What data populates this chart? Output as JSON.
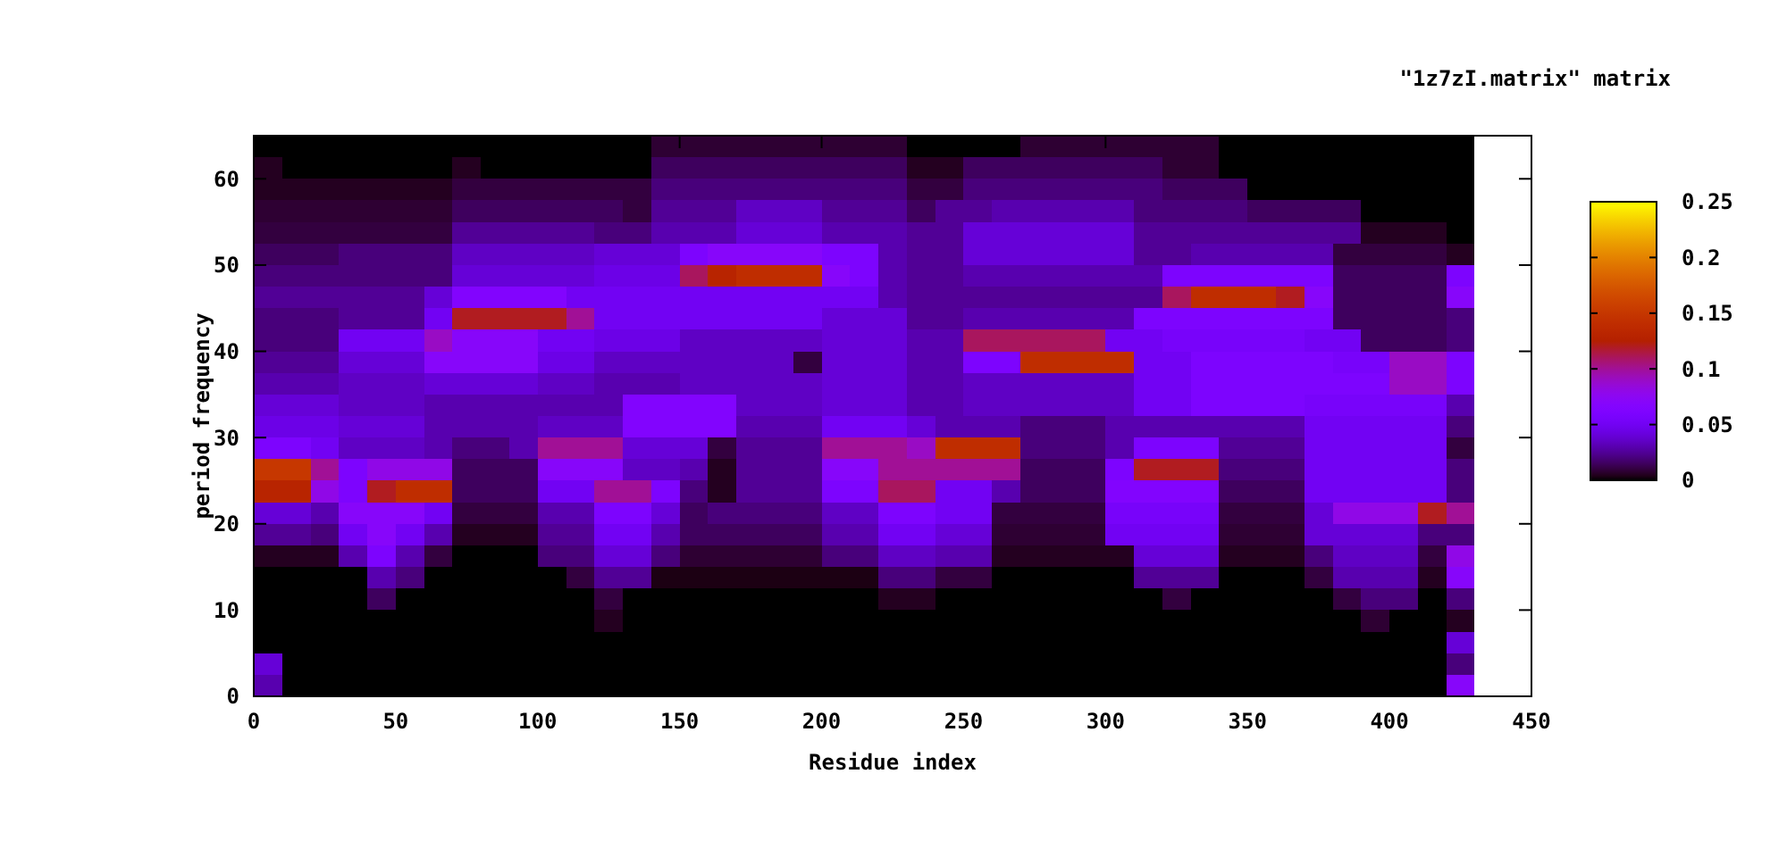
{
  "chart_data": {
    "type": "heatmap",
    "title": "\"1z7zI.matrix\" matrix",
    "xlabel": "Residue index",
    "ylabel": "period frequency",
    "x": [
      5,
      15,
      25,
      35,
      45,
      55,
      65,
      75,
      85,
      95,
      105,
      115,
      125,
      135,
      145,
      155,
      165,
      175,
      185,
      195,
      205,
      215,
      225,
      235,
      245,
      255,
      265,
      275,
      285,
      295,
      305,
      315,
      325,
      335,
      345,
      355,
      365,
      375,
      385,
      395,
      405,
      415,
      425
    ],
    "xlim": [
      0,
      450
    ],
    "xticks": [
      0,
      50,
      100,
      150,
      200,
      250,
      300,
      350,
      400,
      450
    ],
    "ylim": [
      0,
      65
    ],
    "yticks": [
      0,
      10,
      20,
      30,
      40,
      50,
      60
    ],
    "clim": [
      0,
      0.25
    ],
    "cticks": [
      0,
      0.05,
      0.1,
      0.15,
      0.2,
      0.25
    ],
    "cells": [
      [
        0,
        0,
        0,
        0,
        0,
        0,
        0,
        0,
        0,
        0,
        0,
        0,
        0,
        0,
        0.008,
        0.008,
        0.008,
        0.008,
        0.008,
        0.008,
        0.008,
        0.008,
        0.008,
        0,
        0,
        0,
        0,
        0.008,
        0.008,
        0.008,
        0.008,
        0.008,
        0.008,
        0.008,
        0,
        0,
        0,
        0,
        0,
        0,
        0,
        0,
        0
      ],
      [
        0.005,
        0,
        0,
        0,
        0,
        0,
        0,
        0.005,
        0,
        0,
        0,
        0,
        0,
        0,
        0.015,
        0.015,
        0.015,
        0.015,
        0.015,
        0.015,
        0.015,
        0.015,
        0.015,
        0.005,
        0.005,
        0.015,
        0.015,
        0.015,
        0.015,
        0.015,
        0.015,
        0.015,
        0.008,
        0.008,
        0,
        0,
        0,
        0,
        0,
        0,
        0,
        0,
        0
      ],
      [
        0.005,
        0.005,
        0.005,
        0.005,
        0.005,
        0.005,
        0.005,
        0.01,
        0.01,
        0.01,
        0.01,
        0.01,
        0.01,
        0.01,
        0.02,
        0.02,
        0.02,
        0.02,
        0.02,
        0.02,
        0.02,
        0.02,
        0.02,
        0.01,
        0.01,
        0.02,
        0.02,
        0.02,
        0.02,
        0.02,
        0.02,
        0.02,
        0.015,
        0.015,
        0.015,
        0,
        0,
        0,
        0,
        0,
        0,
        0,
        0
      ],
      [
        0.008,
        0.008,
        0.008,
        0.008,
        0.008,
        0.008,
        0.008,
        0.015,
        0.015,
        0.015,
        0.015,
        0.015,
        0.015,
        0.01,
        0.025,
        0.025,
        0.025,
        0.035,
        0.035,
        0.035,
        0.025,
        0.025,
        0.025,
        0.015,
        0.025,
        0.025,
        0.03,
        0.03,
        0.03,
        0.03,
        0.03,
        0.02,
        0.02,
        0.02,
        0.02,
        0.015,
        0.015,
        0.015,
        0.015,
        0,
        0,
        0,
        0
      ],
      [
        0.01,
        0.01,
        0.01,
        0.01,
        0.01,
        0.01,
        0.01,
        0.025,
        0.025,
        0.025,
        0.025,
        0.025,
        0.02,
        0.02,
        0.03,
        0.03,
        0.03,
        0.04,
        0.04,
        0.04,
        0.03,
        0.03,
        0.03,
        0.025,
        0.025,
        0.04,
        0.04,
        0.04,
        0.04,
        0.04,
        0.04,
        0.025,
        0.025,
        0.025,
        0.025,
        0.025,
        0.025,
        0.025,
        0.025,
        0.005,
        0.005,
        0.005,
        0
      ],
      [
        0.015,
        0.015,
        0.015,
        0.02,
        0.02,
        0.02,
        0.02,
        0.035,
        0.035,
        0.035,
        0.035,
        0.035,
        0.04,
        0.04,
        0.04,
        0.06,
        0.07,
        0.07,
        0.07,
        0.07,
        0.06,
        0.06,
        0.03,
        0.025,
        0.025,
        0.04,
        0.04,
        0.04,
        0.04,
        0.04,
        0.04,
        0.025,
        0.025,
        0.03,
        0.03,
        0.03,
        0.03,
        0.03,
        0.01,
        0.01,
        0.01,
        0.01,
        0.005
      ],
      [
        0.02,
        0.02,
        0.02,
        0.02,
        0.02,
        0.02,
        0.02,
        0.04,
        0.04,
        0.04,
        0.04,
        0.04,
        0.045,
        0.045,
        0.045,
        0.11,
        0.13,
        0.14,
        0.14,
        0.14,
        0.07,
        0.06,
        0.03,
        0.025,
        0.025,
        0.03,
        0.03,
        0.03,
        0.03,
        0.03,
        0.03,
        0.03,
        0.06,
        0.06,
        0.06,
        0.06,
        0.06,
        0.06,
        0.015,
        0.015,
        0.015,
        0.015,
        0.06
      ],
      [
        0.025,
        0.025,
        0.025,
        0.025,
        0.025,
        0.025,
        0.04,
        0.065,
        0.065,
        0.065,
        0.065,
        0.05,
        0.05,
        0.05,
        0.05,
        0.05,
        0.05,
        0.05,
        0.05,
        0.05,
        0.05,
        0.05,
        0.03,
        0.025,
        0.025,
        0.025,
        0.025,
        0.025,
        0.025,
        0.025,
        0.025,
        0.025,
        0.11,
        0.14,
        0.14,
        0.14,
        0.12,
        0.07,
        0.015,
        0.015,
        0.015,
        0.015,
        0.07
      ],
      [
        0.02,
        0.02,
        0.02,
        0.025,
        0.025,
        0.025,
        0.05,
        0.12,
        0.12,
        0.12,
        0.12,
        0.1,
        0.05,
        0.05,
        0.05,
        0.05,
        0.05,
        0.05,
        0.05,
        0.05,
        0.04,
        0.04,
        0.04,
        0.025,
        0.025,
        0.03,
        0.03,
        0.03,
        0.03,
        0.03,
        0.03,
        0.06,
        0.06,
        0.06,
        0.06,
        0.06,
        0.06,
        0.06,
        0.015,
        0.015,
        0.015,
        0.015,
        0.02
      ],
      [
        0.02,
        0.02,
        0.02,
        0.05,
        0.05,
        0.05,
        0.09,
        0.07,
        0.07,
        0.07,
        0.05,
        0.05,
        0.045,
        0.045,
        0.045,
        0.035,
        0.035,
        0.035,
        0.035,
        0.035,
        0.04,
        0.04,
        0.04,
        0.03,
        0.03,
        0.11,
        0.11,
        0.11,
        0.11,
        0.11,
        0.05,
        0.05,
        0.055,
        0.055,
        0.055,
        0.055,
        0.055,
        0.05,
        0.05,
        0.015,
        0.015,
        0.015,
        0.02
      ],
      [
        0.025,
        0.025,
        0.025,
        0.04,
        0.04,
        0.04,
        0.07,
        0.07,
        0.07,
        0.07,
        0.045,
        0.045,
        0.035,
        0.035,
        0.035,
        0.035,
        0.035,
        0.035,
        0.035,
        0.01,
        0.04,
        0.04,
        0.04,
        0.03,
        0.03,
        0.06,
        0.06,
        0.14,
        0.14,
        0.14,
        0.14,
        0.05,
        0.05,
        0.06,
        0.06,
        0.06,
        0.06,
        0.06,
        0.055,
        0.055,
        0.09,
        0.09,
        0.06
      ],
      [
        0.03,
        0.03,
        0.03,
        0.035,
        0.035,
        0.035,
        0.04,
        0.04,
        0.04,
        0.04,
        0.035,
        0.035,
        0.03,
        0.03,
        0.03,
        0.035,
        0.035,
        0.035,
        0.035,
        0.035,
        0.04,
        0.04,
        0.04,
        0.03,
        0.03,
        0.035,
        0.035,
        0.035,
        0.035,
        0.035,
        0.035,
        0.05,
        0.05,
        0.06,
        0.06,
        0.06,
        0.06,
        0.06,
        0.06,
        0.06,
        0.09,
        0.09,
        0.06
      ],
      [
        0.04,
        0.04,
        0.04,
        0.035,
        0.035,
        0.035,
        0.03,
        0.03,
        0.03,
        0.03,
        0.03,
        0.03,
        0.03,
        0.065,
        0.065,
        0.065,
        0.065,
        0.035,
        0.035,
        0.035,
        0.04,
        0.04,
        0.04,
        0.03,
        0.03,
        0.035,
        0.035,
        0.035,
        0.035,
        0.035,
        0.035,
        0.05,
        0.05,
        0.06,
        0.06,
        0.06,
        0.06,
        0.055,
        0.055,
        0.055,
        0.055,
        0.055,
        0.03
      ],
      [
        0.045,
        0.045,
        0.045,
        0.04,
        0.04,
        0.04,
        0.03,
        0.03,
        0.03,
        0.03,
        0.035,
        0.035,
        0.035,
        0.065,
        0.065,
        0.065,
        0.065,
        0.03,
        0.03,
        0.03,
        0.05,
        0.05,
        0.05,
        0.04,
        0.03,
        0.03,
        0.03,
        0.02,
        0.02,
        0.02,
        0.03,
        0.03,
        0.03,
        0.03,
        0.03,
        0.03,
        0.03,
        0.05,
        0.05,
        0.05,
        0.05,
        0.05,
        0.02
      ],
      [
        0.06,
        0.06,
        0.05,
        0.035,
        0.035,
        0.035,
        0.03,
        0.02,
        0.02,
        0.03,
        0.1,
        0.1,
        0.1,
        0.04,
        0.04,
        0.04,
        0.01,
        0.025,
        0.025,
        0.025,
        0.1,
        0.1,
        0.1,
        0.09,
        0.14,
        0.14,
        0.14,
        0.02,
        0.02,
        0.02,
        0.03,
        0.06,
        0.06,
        0.06,
        0.025,
        0.025,
        0.025,
        0.05,
        0.05,
        0.05,
        0.05,
        0.05,
        0.01
      ],
      [
        0.15,
        0.15,
        0.1,
        0.06,
        0.08,
        0.08,
        0.08,
        0.015,
        0.015,
        0.015,
        0.07,
        0.07,
        0.07,
        0.035,
        0.035,
        0.03,
        0.005,
        0.025,
        0.025,
        0.025,
        0.07,
        0.07,
        0.1,
        0.1,
        0.1,
        0.1,
        0.1,
        0.015,
        0.015,
        0.015,
        0.06,
        0.12,
        0.12,
        0.12,
        0.02,
        0.02,
        0.02,
        0.05,
        0.05,
        0.05,
        0.05,
        0.05,
        0.02
      ],
      [
        0.13,
        0.13,
        0.08,
        0.06,
        0.12,
        0.14,
        0.14,
        0.015,
        0.015,
        0.015,
        0.05,
        0.05,
        0.1,
        0.1,
        0.06,
        0.02,
        0.005,
        0.025,
        0.025,
        0.025,
        0.06,
        0.06,
        0.11,
        0.11,
        0.05,
        0.05,
        0.03,
        0.015,
        0.015,
        0.015,
        0.065,
        0.065,
        0.065,
        0.065,
        0.015,
        0.015,
        0.015,
        0.05,
        0.05,
        0.05,
        0.05,
        0.05,
        0.02
      ],
      [
        0.04,
        0.04,
        0.03,
        0.07,
        0.07,
        0.07,
        0.05,
        0.01,
        0.01,
        0.01,
        0.03,
        0.03,
        0.06,
        0.06,
        0.04,
        0.015,
        0.02,
        0.02,
        0.02,
        0.02,
        0.035,
        0.035,
        0.06,
        0.06,
        0.05,
        0.05,
        0.01,
        0.01,
        0.01,
        0.01,
        0.055,
        0.055,
        0.055,
        0.055,
        0.01,
        0.01,
        0.01,
        0.04,
        0.08,
        0.08,
        0.08,
        0.12,
        0.1
      ],
      [
        0.025,
        0.025,
        0.02,
        0.05,
        0.07,
        0.05,
        0.03,
        0.005,
        0.005,
        0.005,
        0.025,
        0.025,
        0.05,
        0.05,
        0.03,
        0.015,
        0.015,
        0.015,
        0.015,
        0.015,
        0.03,
        0.03,
        0.05,
        0.05,
        0.04,
        0.04,
        0.008,
        0.008,
        0.008,
        0.008,
        0.05,
        0.05,
        0.05,
        0.05,
        0.008,
        0.008,
        0.008,
        0.04,
        0.04,
        0.04,
        0.04,
        0.02,
        0.02
      ],
      [
        0.005,
        0.005,
        0.005,
        0.03,
        0.06,
        0.03,
        0.01,
        0,
        0,
        0,
        0.02,
        0.02,
        0.04,
        0.04,
        0.02,
        0.008,
        0.008,
        0.008,
        0.008,
        0.008,
        0.02,
        0.02,
        0.035,
        0.035,
        0.03,
        0.03,
        0.005,
        0.005,
        0.005,
        0.005,
        0.005,
        0.04,
        0.04,
        0.04,
        0.005,
        0.005,
        0.005,
        0.02,
        0.035,
        0.035,
        0.035,
        0.01,
        0.08
      ],
      [
        0,
        0,
        0,
        0,
        0.03,
        0.02,
        0,
        0,
        0,
        0,
        0,
        0.01,
        0.025,
        0.025,
        0.003,
        0.003,
        0.003,
        0.003,
        0.003,
        0.003,
        0.003,
        0.003,
        0.02,
        0.02,
        0.01,
        0.01,
        0,
        0,
        0,
        0,
        0,
        0.025,
        0.025,
        0.025,
        0,
        0,
        0,
        0.01,
        0.03,
        0.03,
        0.03,
        0.005,
        0.07
      ],
      [
        0,
        0,
        0,
        0,
        0.015,
        0,
        0,
        0,
        0,
        0,
        0,
        0,
        0.01,
        0,
        0,
        0,
        0,
        0,
        0,
        0,
        0,
        0,
        0.005,
        0.005,
        0,
        0,
        0,
        0,
        0,
        0,
        0,
        0,
        0.01,
        0,
        0,
        0,
        0,
        0,
        0.01,
        0.02,
        0.02,
        0,
        0.02
      ],
      [
        0,
        0,
        0,
        0,
        0,
        0,
        0,
        0,
        0,
        0,
        0,
        0,
        0.005,
        0,
        0,
        0,
        0,
        0,
        0,
        0,
        0,
        0,
        0,
        0,
        0,
        0,
        0,
        0,
        0,
        0,
        0,
        0,
        0,
        0,
        0,
        0,
        0,
        0,
        0,
        0.008,
        0,
        0,
        0.005
      ],
      [
        0,
        0,
        0,
        0,
        0,
        0,
        0,
        0,
        0,
        0,
        0,
        0,
        0,
        0,
        0,
        0,
        0,
        0,
        0,
        0,
        0,
        0,
        0,
        0,
        0,
        0,
        0,
        0,
        0,
        0,
        0,
        0,
        0,
        0,
        0,
        0,
        0,
        0,
        0,
        0,
        0,
        0,
        0.04
      ],
      [
        0.04,
        0,
        0,
        0,
        0,
        0,
        0,
        0,
        0,
        0,
        0,
        0,
        0,
        0,
        0,
        0,
        0,
        0,
        0,
        0,
        0,
        0,
        0,
        0,
        0,
        0,
        0,
        0,
        0,
        0,
        0,
        0,
        0,
        0,
        0,
        0,
        0,
        0,
        0,
        0,
        0,
        0,
        0.02
      ],
      [
        0.03,
        0,
        0,
        0,
        0,
        0,
        0,
        0,
        0,
        0,
        0,
        0,
        0,
        0,
        0,
        0,
        0,
        0,
        0,
        0,
        0,
        0,
        0,
        0,
        0,
        0,
        0,
        0,
        0,
        0,
        0,
        0,
        0,
        0,
        0,
        0,
        0,
        0,
        0,
        0,
        0,
        0,
        0.07
      ]
    ]
  }
}
